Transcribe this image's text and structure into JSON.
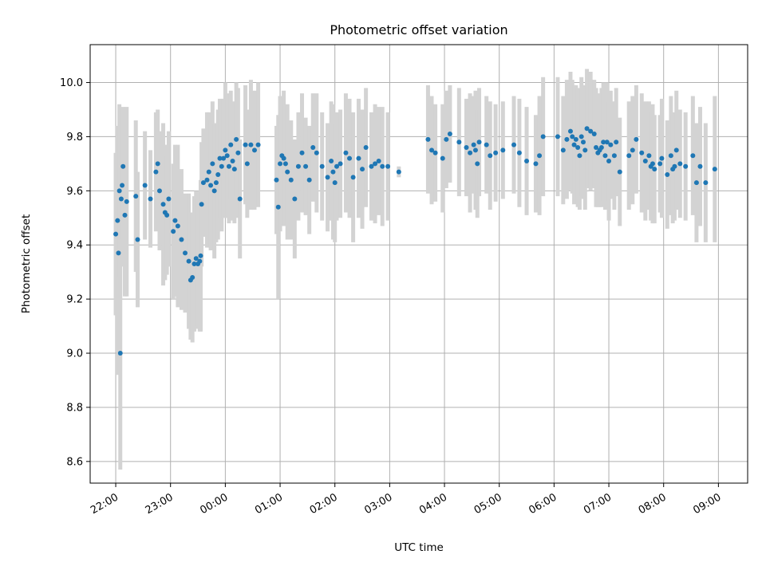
{
  "chart_data": {
    "type": "scatter",
    "title": "Photometric offset variation",
    "xlabel": "UTC time",
    "ylabel": "Photometric offset",
    "x_ticks": [
      "22:00",
      "23:00",
      "00:00",
      "01:00",
      "02:00",
      "03:00",
      "04:00",
      "05:00",
      "06:00",
      "07:00",
      "08:00",
      "09:00"
    ],
    "y_ticks": [
      "8.6",
      "8.8",
      "9.0",
      "9.2",
      "9.4",
      "9.6",
      "9.8",
      "10.0"
    ],
    "ylim": [
      8.52,
      10.14
    ],
    "xlim": [
      "21:32",
      "09:32"
    ],
    "grid": true,
    "colors": {
      "points": "#1f77b4",
      "errorbars": "#d3d3d3"
    },
    "series": [
      {
        "x": [
          "22:00",
          "22:02",
          "22:03",
          "22:04",
          "22:05",
          "22:06",
          "22:07",
          "22:08",
          "22:10",
          "22:12",
          "22:22",
          "22:24",
          "22:32",
          "22:38",
          "22:44",
          "22:46",
          "22:48",
          "22:52",
          "22:54",
          "22:56",
          "22:58",
          "23:03",
          "23:05",
          "23:08",
          "23:12",
          "23:16",
          "23:20",
          "23:22",
          "23:24",
          "23:26",
          "23:28",
          "23:30",
          "23:32",
          "23:33",
          "23:34",
          "23:36",
          "23:40",
          "23:42",
          "23:44",
          "23:46",
          "23:48",
          "23:50",
          "23:52",
          "23:54",
          "23:56",
          "23:58",
          "00:00",
          "00:02",
          "00:04",
          "00:06",
          "00:08",
          "00:10",
          "00:12",
          "00:14",
          "00:16",
          "00:22",
          "00:24",
          "00:28",
          "00:32",
          "00:36",
          "00:56",
          "00:58",
          "01:00",
          "01:02",
          "01:04",
          "01:06",
          "01:08",
          "01:12",
          "01:16",
          "01:20",
          "01:24",
          "01:28",
          "01:32",
          "01:36",
          "01:40",
          "01:46",
          "01:52",
          "01:56",
          "01:58",
          "02:00",
          "02:02",
          "02:06",
          "02:12",
          "02:16",
          "02:20",
          "02:26",
          "02:30",
          "02:34",
          "02:40",
          "02:44",
          "02:48",
          "02:52",
          "02:58",
          "03:10",
          "03:42",
          "03:46",
          "03:50",
          "03:58",
          "04:02",
          "04:06",
          "04:16",
          "04:24",
          "04:28",
          "04:32",
          "04:34",
          "04:36",
          "04:38",
          "04:46",
          "04:50",
          "04:56",
          "05:04",
          "05:16",
          "05:22",
          "05:30",
          "05:40",
          "05:44",
          "05:48",
          "06:04",
          "06:10",
          "06:14",
          "06:18",
          "06:20",
          "06:22",
          "06:24",
          "06:26",
          "06:28",
          "06:30",
          "06:32",
          "06:34",
          "06:36",
          "06:40",
          "06:44",
          "06:46",
          "06:48",
          "06:50",
          "06:52",
          "06:54",
          "06:56",
          "06:58",
          "07:00",
          "07:02",
          "07:06",
          "07:08",
          "07:12",
          "07:22",
          "07:26",
          "07:30",
          "07:36",
          "07:40",
          "07:44",
          "07:46",
          "07:48",
          "07:50",
          "07:56",
          "07:58",
          "08:04",
          "08:08",
          "08:10",
          "08:12",
          "08:14",
          "08:18",
          "08:24",
          "08:32",
          "08:36",
          "08:40",
          "08:46",
          "08:56"
        ],
        "y": [
          9.44,
          9.49,
          9.37,
          9.6,
          9.0,
          9.57,
          9.62,
          9.69,
          9.51,
          9.56,
          9.58,
          9.42,
          9.62,
          9.57,
          9.67,
          9.7,
          9.6,
          9.55,
          9.52,
          9.51,
          9.57,
          9.45,
          9.49,
          9.47,
          9.42,
          9.37,
          9.34,
          9.27,
          9.28,
          9.33,
          9.35,
          9.33,
          9.34,
          9.36,
          9.55,
          9.63,
          9.64,
          9.67,
          9.62,
          9.7,
          9.6,
          9.63,
          9.66,
          9.72,
          9.69,
          9.72,
          9.75,
          9.73,
          9.69,
          9.77,
          9.71,
          9.68,
          9.79,
          9.74,
          9.57,
          9.77,
          9.7,
          9.77,
          9.75,
          9.77,
          9.64,
          9.54,
          9.7,
          9.73,
          9.72,
          9.7,
          9.67,
          9.64,
          9.57,
          9.69,
          9.74,
          9.69,
          9.64,
          9.76,
          9.74,
          9.69,
          9.65,
          9.71,
          9.67,
          9.63,
          9.69,
          9.7,
          9.74,
          9.72,
          9.65,
          9.72,
          9.68,
          9.76,
          9.69,
          9.7,
          9.71,
          9.69,
          9.69,
          9.67,
          9.79,
          9.75,
          9.74,
          9.72,
          9.79,
          9.81,
          9.78,
          9.76,
          9.74,
          9.77,
          9.75,
          9.7,
          9.78,
          9.77,
          9.73,
          9.74,
          9.75,
          9.77,
          9.74,
          9.71,
          9.7,
          9.73,
          9.8,
          9.8,
          9.75,
          9.79,
          9.82,
          9.8,
          9.77,
          9.79,
          9.76,
          9.73,
          9.8,
          9.78,
          9.75,
          9.83,
          9.82,
          9.81,
          9.76,
          9.74,
          9.75,
          9.76,
          9.78,
          9.73,
          9.78,
          9.71,
          9.77,
          9.73,
          9.78,
          9.67,
          9.73,
          9.75,
          9.79,
          9.74,
          9.71,
          9.73,
          9.69,
          9.7,
          9.68,
          9.7,
          9.72,
          9.66,
          9.73,
          9.68,
          9.69,
          9.75,
          9.7,
          9.69,
          9.73,
          9.63,
          9.69,
          9.63,
          9.68
        ],
        "yerr": [
          0.3,
          0.35,
          0.45,
          0.32,
          0.43,
          0.25,
          0.2,
          0.22,
          0.3,
          0.35,
          0.28,
          0.25,
          0.2,
          0.18,
          0.22,
          0.2,
          0.22,
          0.3,
          0.25,
          0.22,
          0.25,
          0.25,
          0.28,
          0.3,
          0.26,
          0.22,
          0.25,
          0.22,
          0.24,
          0.25,
          0.25,
          0.24,
          0.26,
          0.28,
          0.23,
          0.2,
          0.25,
          0.22,
          0.24,
          0.23,
          0.25,
          0.22,
          0.24,
          0.22,
          0.24,
          0.22,
          0.25,
          0.23,
          0.21,
          0.2,
          0.22,
          0.2,
          0.21,
          0.24,
          0.22,
          0.22,
          0.2,
          0.24,
          0.22,
          0.23,
          0.2,
          0.34,
          0.25,
          0.22,
          0.25,
          0.2,
          0.25,
          0.22,
          0.22,
          0.2,
          0.22,
          0.18,
          0.2,
          0.2,
          0.22,
          0.2,
          0.2,
          0.22,
          0.25,
          0.22,
          0.2,
          0.2,
          0.22,
          0.22,
          0.24,
          0.22,
          0.22,
          0.22,
          0.2,
          0.22,
          0.2,
          0.22,
          0.2,
          0.02,
          0.2,
          0.2,
          0.18,
          0.2,
          0.18,
          0.18,
          0.2,
          0.18,
          0.22,
          0.18,
          0.22,
          0.2,
          0.2,
          0.18,
          0.2,
          0.18,
          0.18,
          0.18,
          0.2,
          0.2,
          0.18,
          0.22,
          0.22,
          0.22,
          0.2,
          0.22,
          0.22,
          0.21,
          0.22,
          0.2,
          0.22,
          0.2,
          0.22,
          0.21,
          0.22,
          0.22,
          0.22,
          0.2,
          0.22,
          0.2,
          0.21,
          0.22,
          0.22,
          0.2,
          0.22,
          0.22,
          0.2,
          0.2,
          0.2,
          0.2,
          0.2,
          0.2,
          0.2,
          0.22,
          0.22,
          0.2,
          0.2,
          0.22,
          0.2,
          0.18,
          0.22,
          0.2,
          0.22,
          0.2,
          0.2,
          0.22,
          0.2,
          0.2,
          0.22,
          0.22,
          0.22,
          0.22,
          0.27
        ]
      }
    ]
  }
}
